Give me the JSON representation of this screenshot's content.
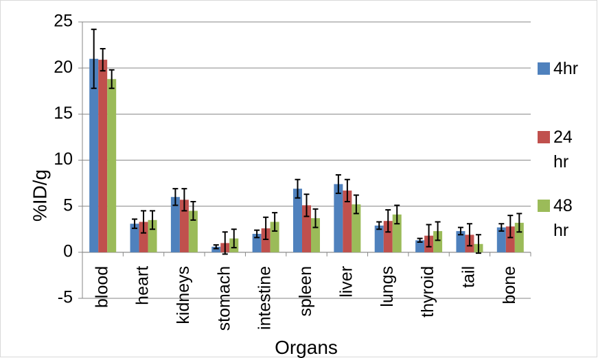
{
  "chart_data": {
    "type": "bar",
    "x_label": "Organs",
    "y_label": "%ID/g",
    "categories": [
      "blood",
      "heart",
      "kidneys",
      "stomach",
      "intestine",
      "spleen",
      "liver",
      "lungs",
      "thyroid",
      "tail",
      "bone"
    ],
    "series": [
      {
        "name": "4hr",
        "color": "#4f81bd",
        "values": [
          21.0,
          3.1,
          6.0,
          0.6,
          2.0,
          6.9,
          7.4,
          2.9,
          1.3,
          2.3,
          2.7
        ],
        "errors": [
          3.2,
          0.5,
          0.9,
          0.2,
          0.4,
          1.0,
          1.0,
          0.4,
          0.2,
          0.4,
          0.4
        ]
      },
      {
        "name": "24 hr",
        "color": "#c0504d",
        "values": [
          20.9,
          3.3,
          5.7,
          1.0,
          2.6,
          5.1,
          6.7,
          3.4,
          1.8,
          1.9,
          2.8
        ],
        "errors": [
          1.2,
          1.2,
          1.2,
          1.2,
          1.2,
          1.2,
          1.2,
          1.2,
          1.2,
          1.2,
          1.2
        ]
      },
      {
        "name": "48 hr",
        "color": "#9bbb59",
        "values": [
          18.8,
          3.5,
          4.5,
          1.5,
          3.3,
          3.7,
          5.2,
          4.1,
          2.3,
          0.9,
          3.2
        ],
        "errors": [
          1.0,
          1.0,
          1.0,
          1.0,
          1.0,
          1.0,
          1.0,
          1.0,
          1.0,
          1.0,
          1.0
        ]
      }
    ],
    "ylim": [
      -5,
      25
    ],
    "yticks": [
      -5,
      0,
      5,
      10,
      15,
      20,
      25
    ],
    "grid": true,
    "legend": "right"
  }
}
